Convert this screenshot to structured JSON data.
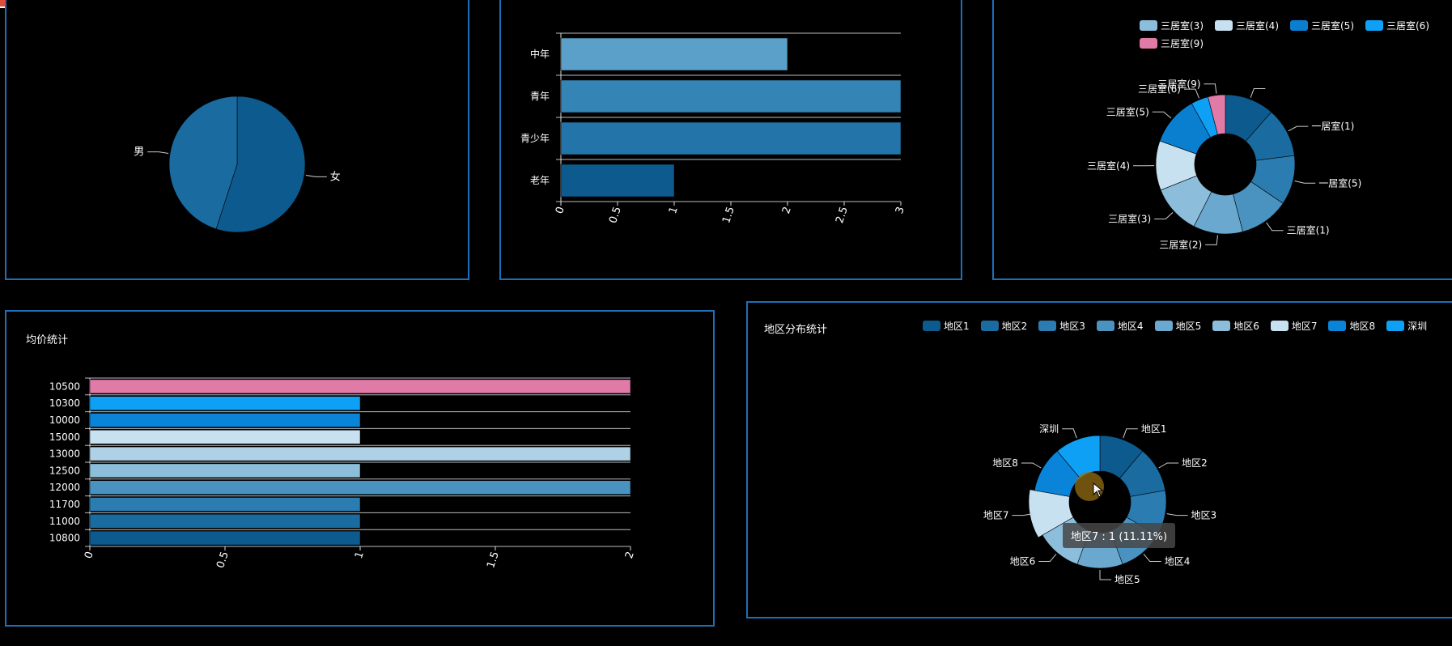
{
  "colors": {
    "border": "#1e6fb8",
    "blues": [
      "#0d5a8e",
      "#1a6ba0",
      "#2b7cb1",
      "#4a93c0",
      "#6aa8d0",
      "#8cbedc",
      "#aed1e6",
      "#c8e1f1",
      "#0a84d8",
      "#0ea0f5"
    ],
    "pink": "#e07aa7"
  },
  "panel1": {
    "chart_data": {
      "type": "pie",
      "labels": [
        "女",
        "男"
      ],
      "values": [
        55,
        45
      ],
      "colors": [
        "#0d5a8e",
        "#1a6ba0"
      ]
    }
  },
  "panel2": {
    "chart_data": {
      "type": "bar",
      "orientation": "horizontal",
      "categories": [
        "中年",
        "青年",
        "青少年",
        "老年"
      ],
      "values": [
        2,
        3,
        3,
        1
      ],
      "colors": [
        "#5aa0c8",
        "#3485b5",
        "#2374a8",
        "#0d5a8e"
      ],
      "xticks": [
        "0",
        "0.5",
        "1",
        "1.5",
        "2",
        "2.5",
        "3"
      ],
      "xlim": [
        0,
        3
      ]
    }
  },
  "panel3": {
    "legend": [
      {
        "label": "三居室(3)",
        "color": "#8cbedc"
      },
      {
        "label": "三居室(4)",
        "color": "#c8e1f1"
      },
      {
        "label": "三居室(5)",
        "color": "#0a7fd0"
      },
      {
        "label": "三居室(6)",
        "color": "#0ea0f5"
      },
      {
        "label": "三居室(9)",
        "color": "#e07aa7"
      }
    ],
    "chart_data": {
      "type": "pie",
      "donut": true,
      "labels": [
        "",
        "一居室(1)",
        "一居室(5)",
        "三居室(1)",
        "三居室(2)",
        "三居室(3)",
        "三居室(4)",
        "三居室(5)",
        "三居室(6)",
        "三居室(9)"
      ],
      "values": [
        1,
        1,
        1,
        1,
        1,
        1,
        1,
        1,
        0.35,
        0.35
      ],
      "colors": [
        "#0d5a8e",
        "#1a6ba0",
        "#2b7cb1",
        "#4a93c0",
        "#6aa8d0",
        "#8cbedc",
        "#c8e1f1",
        "#0a7fd0",
        "#0ea0f5",
        "#e07aa7"
      ]
    }
  },
  "panel4": {
    "title": "均价统计",
    "chart_data": {
      "type": "bar",
      "orientation": "horizontal",
      "categories": [
        "10500",
        "10300",
        "10000",
        "15000",
        "13000",
        "12500",
        "12000",
        "11700",
        "11000",
        "10800"
      ],
      "values": [
        2,
        1,
        1,
        1,
        2,
        1,
        2,
        1,
        1,
        1
      ],
      "colors": [
        "#e07aa7",
        "#0ea0f5",
        "#0a84d8",
        "#c8e1f1",
        "#aed1e6",
        "#8cbedc",
        "#4a93c0",
        "#2b7cb1",
        "#1a6ba0",
        "#0d5a8e"
      ],
      "xticks": [
        "0",
        "0.5",
        "1",
        "1.5",
        "2"
      ],
      "xlim": [
        0,
        2
      ]
    }
  },
  "panel5": {
    "title": "地区分布统计",
    "legend": [
      {
        "label": "地区1",
        "color": "#0d5a8e"
      },
      {
        "label": "地区2",
        "color": "#1a6ba0"
      },
      {
        "label": "地区3",
        "color": "#2b7cb1"
      },
      {
        "label": "地区4",
        "color": "#4a93c0"
      },
      {
        "label": "地区5",
        "color": "#6aa8d0"
      },
      {
        "label": "地区6",
        "color": "#8cbedc"
      },
      {
        "label": "地区7",
        "color": "#c8e1f1"
      },
      {
        "label": "地区8",
        "color": "#0a84d8"
      },
      {
        "label": "深圳",
        "color": "#0ea0f5"
      }
    ],
    "chart_data": {
      "type": "pie",
      "donut": true,
      "labels": [
        "地区1",
        "地区2",
        "地区3",
        "地区4",
        "地区5",
        "地区6",
        "地区7",
        "地区8",
        "深圳"
      ],
      "values": [
        1,
        1,
        1,
        1,
        1,
        1,
        1,
        1,
        1
      ],
      "colors": [
        "#0d5a8e",
        "#1a6ba0",
        "#2b7cb1",
        "#4a93c0",
        "#6aa8d0",
        "#8cbedc",
        "#c8e1f1",
        "#0a84d8",
        "#0ea0f5"
      ],
      "highlight": "地区7"
    },
    "tooltip": "地区7 : 1 (11.11%)"
  }
}
